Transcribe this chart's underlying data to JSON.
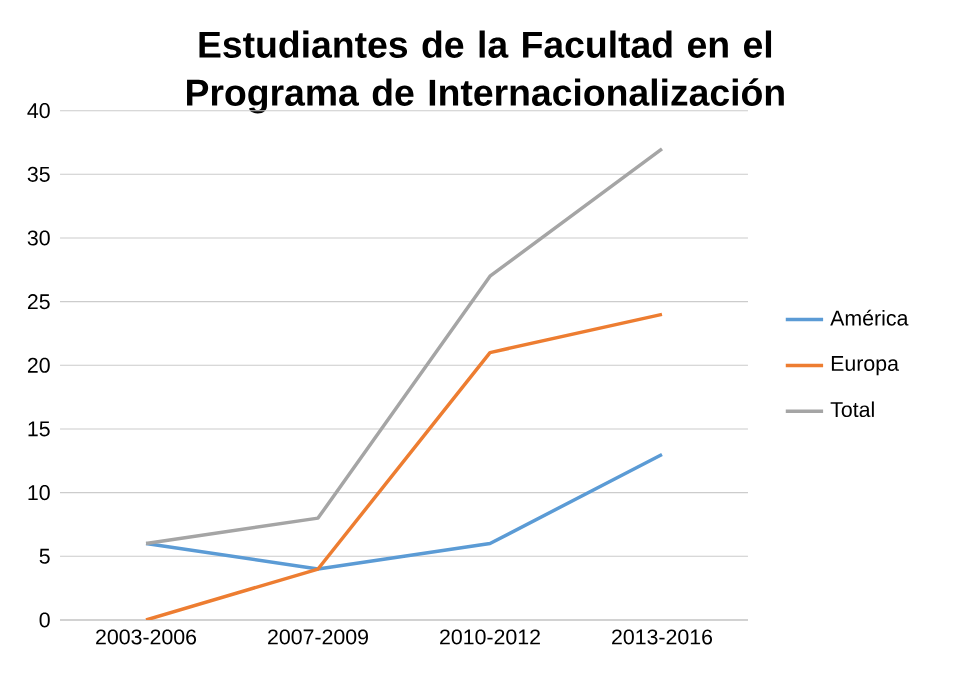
{
  "chart_data": {
    "type": "line",
    "title": "Estudiantes de la Facultad en el Programa de Internacionalización",
    "categories": [
      "2003-2006",
      "2007-2009",
      "2010-2012",
      "2013-2016"
    ],
    "series": [
      {
        "name": "América",
        "color": "#5b9bd5",
        "values": [
          6,
          4,
          6,
          13
        ]
      },
      {
        "name": "Europa",
        "color": "#ed7d31",
        "values": [
          0,
          4,
          21,
          24
        ]
      },
      {
        "name": "Total",
        "color": "#a5a5a5",
        "values": [
          6,
          8,
          27,
          37
        ]
      }
    ],
    "ylim": [
      0,
      40
    ],
    "yticks": [
      0,
      5,
      10,
      15,
      20,
      25,
      30,
      35,
      40
    ],
    "grid": "y",
    "legend": "right",
    "marker": "none",
    "line_style": "solid"
  }
}
